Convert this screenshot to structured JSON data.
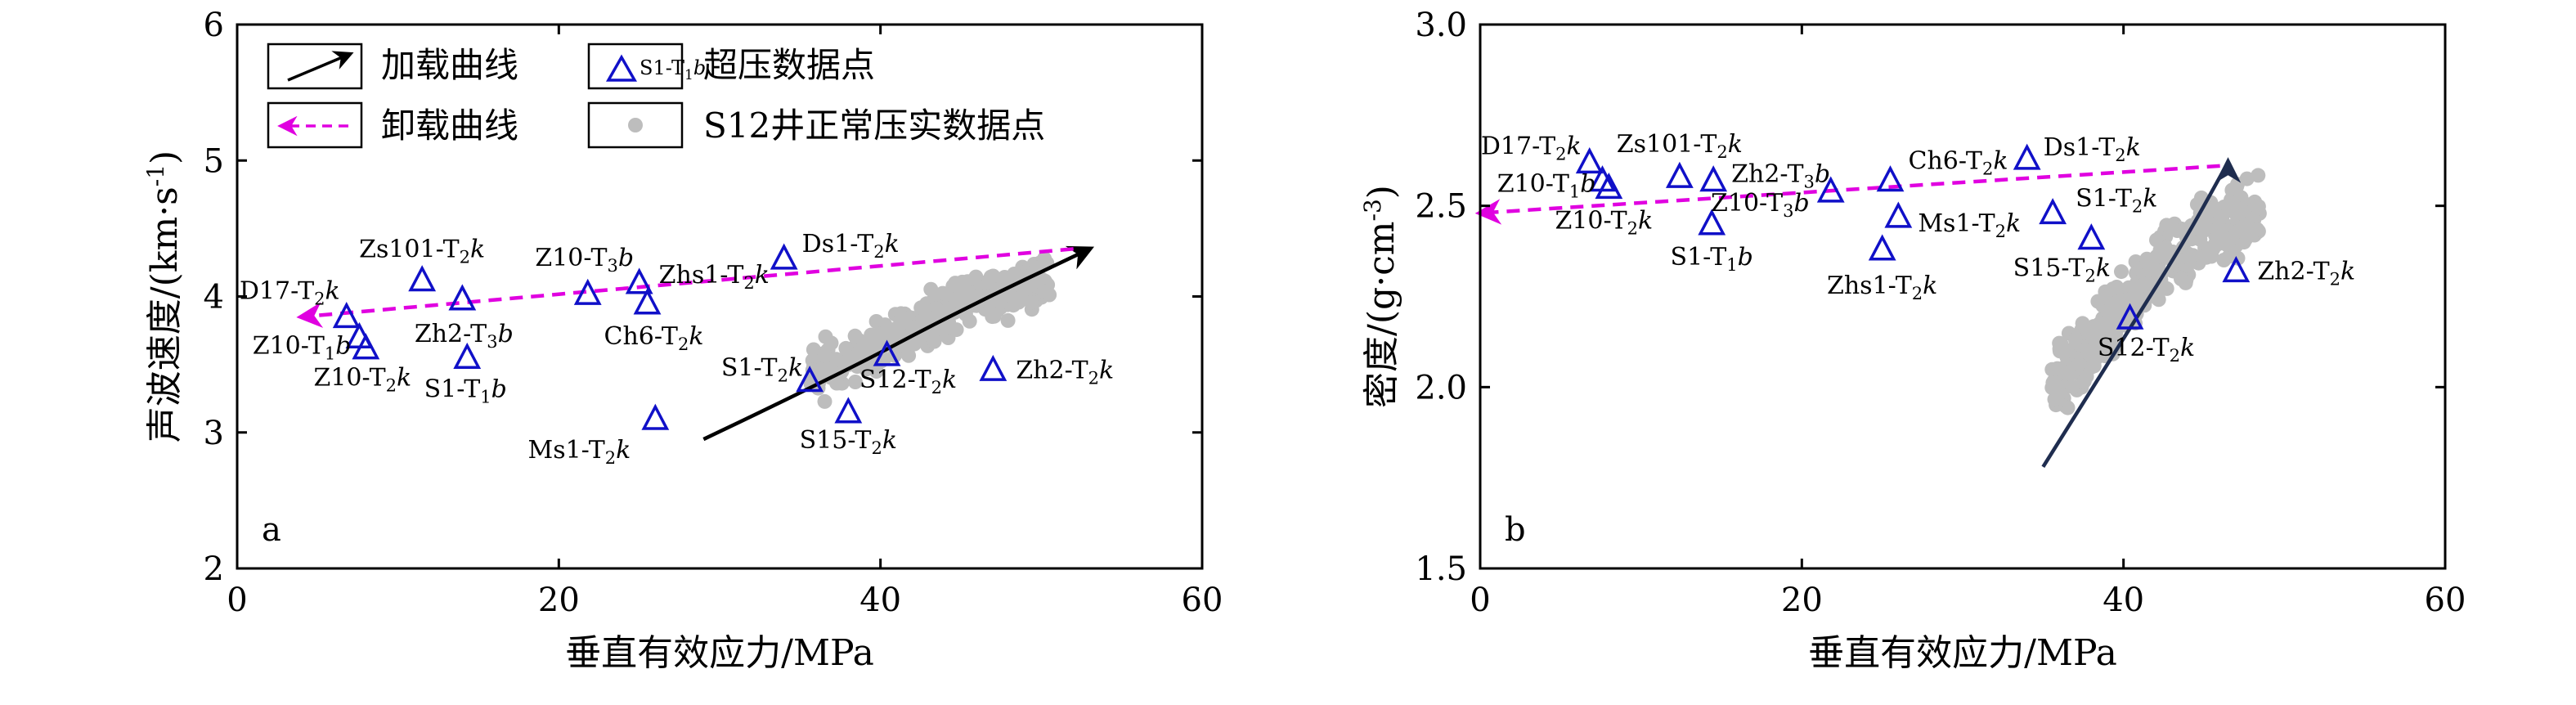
{
  "chart_data": [
    {
      "type": "scatter",
      "panel_letter": "a",
      "xlabel": "垂直有效应力/MPa",
      "ylabel_main": "声波速度/(km·s",
      "ylabel_sup": "-1",
      "ylabel_tail": ")",
      "xlim": [
        0,
        60
      ],
      "ylim": [
        2,
        6
      ],
      "xticks": [
        0,
        20,
        40,
        60
      ],
      "yticks": [
        2,
        3,
        4,
        5,
        6
      ],
      "legend": {
        "placement": "top-left",
        "items": [
          {
            "key": "loading",
            "label": "加载曲线"
          },
          {
            "key": "overpressure",
            "label": "超压数据点",
            "sample": [
              "S1-T",
              "1",
              "b"
            ]
          },
          {
            "key": "unloading",
            "label": "卸载曲线"
          },
          {
            "key": "normal",
            "label": "S12井正常压实数据点"
          }
        ]
      },
      "loading_curve": [
        [
          29,
          2.95
        ],
        [
          37,
          3.4
        ],
        [
          45,
          3.9
        ],
        [
          53,
          4.35
        ]
      ],
      "unloading_curve": [
        [
          52,
          4.35
        ],
        [
          4,
          3.85
        ]
      ],
      "overpressure_points": [
        {
          "x": 6.8,
          "y": 3.85,
          "label": [
            "D17-T",
            "2",
            "k"
          ]
        },
        {
          "x": 7.6,
          "y": 3.7,
          "label": [
            "Z10-T",
            "1",
            "b"
          ]
        },
        {
          "x": 8.0,
          "y": 3.62,
          "label": [
            "Z10-T",
            "2",
            "k"
          ]
        },
        {
          "x": 11.5,
          "y": 4.12,
          "label": [
            "Zs101-T",
            "2",
            "k"
          ]
        },
        {
          "x": 14.0,
          "y": 3.98,
          "label": [
            "Zh2-T",
            "3",
            "b"
          ]
        },
        {
          "x": 14.3,
          "y": 3.55,
          "label": [
            "S1-T",
            "1",
            "b"
          ]
        },
        {
          "x": 21.8,
          "y": 4.02,
          "label": [
            "Z10-T",
            "3",
            "b"
          ]
        },
        {
          "x": 25.0,
          "y": 4.1,
          "label": [
            "Zhs1-T",
            "2",
            "k"
          ]
        },
        {
          "x": 25.5,
          "y": 3.95,
          "label": [
            "Ch6-T",
            "2",
            "k"
          ]
        },
        {
          "x": 26.0,
          "y": 3.1,
          "label": [
            "Ms1-T",
            "2",
            "k"
          ]
        },
        {
          "x": 34.0,
          "y": 4.28,
          "label": [
            "Ds1-T",
            "2",
            "k"
          ]
        },
        {
          "x": 35.6,
          "y": 3.38,
          "label": [
            "S1-T",
            "2",
            "k"
          ]
        },
        {
          "x": 38.0,
          "y": 3.15,
          "label": [
            "S15-T",
            "2",
            "k"
          ]
        },
        {
          "x": 40.4,
          "y": 3.57,
          "label": [
            "S12-T",
            "2",
            "k"
          ]
        },
        {
          "x": 47.0,
          "y": 3.46,
          "label": [
            "Zh2-T",
            "2",
            "k"
          ]
        }
      ],
      "normal_points": {
        "count": 320,
        "seed": 11,
        "x_range": [
          35.5,
          50.5
        ],
        "trend": [
          [
            35.5,
            3.4
          ],
          [
            40,
            3.65
          ],
          [
            45,
            3.95
          ],
          [
            50,
            4.1
          ]
        ],
        "spread": 0.16
      }
    },
    {
      "type": "scatter",
      "panel_letter": "b",
      "xlabel": "垂直有效应力/MPa",
      "ylabel_main": "密度/(g·cm",
      "ylabel_sup": "-3",
      "ylabel_tail": ")",
      "xlim": [
        0,
        60
      ],
      "ylim": [
        1.5,
        3.0
      ],
      "xticks": [
        0,
        20,
        40,
        60
      ],
      "yticks": [
        1.5,
        2.0,
        2.5,
        3.0
      ],
      "loading_curve": [
        [
          35,
          1.78
        ],
        [
          39.5,
          2.1
        ],
        [
          43.5,
          2.38
        ],
        [
          46.5,
          2.62
        ]
      ],
      "unloading_curve": [
        [
          46,
          2.61
        ],
        [
          0,
          2.48
        ]
      ],
      "overpressure_points": [
        {
          "x": 6.8,
          "y": 2.62,
          "label": [
            "D17-T",
            "2",
            "k"
          ]
        },
        {
          "x": 7.6,
          "y": 2.57,
          "label": [
            "Z10-T",
            "1",
            "b"
          ]
        },
        {
          "x": 8.0,
          "y": 2.55,
          "label": [
            "Z10-T",
            "2",
            "k"
          ]
        },
        {
          "x": 12.4,
          "y": 2.58,
          "label": [
            "Zs101-T",
            "2",
            "k"
          ]
        },
        {
          "x": 14.4,
          "y": 2.45,
          "label": [
            "S1-T",
            "1",
            "b"
          ]
        },
        {
          "x": 14.5,
          "y": 2.57,
          "label": [
            "Zh2-T",
            "3",
            "b"
          ]
        },
        {
          "x": 21.8,
          "y": 2.54,
          "label": [
            "Z10-T",
            "3",
            "b"
          ]
        },
        {
          "x": 25.0,
          "y": 2.38,
          "label": [
            "Zhs1-T",
            "2",
            "k"
          ]
        },
        {
          "x": 25.5,
          "y": 2.57,
          "label": [
            "Ch6-T",
            "2",
            "k"
          ]
        },
        {
          "x": 26.0,
          "y": 2.47,
          "label": [
            "Ms1-T",
            "2",
            "k"
          ]
        },
        {
          "x": 34.0,
          "y": 2.63,
          "label": [
            "Ds1-T",
            "2",
            "k"
          ]
        },
        {
          "x": 35.6,
          "y": 2.48,
          "label": [
            "S1-T",
            "2",
            "k"
          ]
        },
        {
          "x": 38.0,
          "y": 2.41,
          "label": [
            "S15-T",
            "2",
            "k"
          ]
        },
        {
          "x": 40.4,
          "y": 2.19,
          "label": [
            "S12-T",
            "2",
            "k"
          ]
        },
        {
          "x": 47.0,
          "y": 2.32,
          "label": [
            "Zh2-T",
            "2",
            "k"
          ]
        }
      ],
      "normal_points": {
        "count": 320,
        "seed": 23,
        "x_range": [
          35.5,
          48.5
        ],
        "trend": [
          [
            35.5,
            2.0
          ],
          [
            38.5,
            2.15
          ],
          [
            42,
            2.32
          ],
          [
            45,
            2.42
          ],
          [
            48,
            2.48
          ]
        ],
        "spread": 0.09
      }
    }
  ],
  "colors": {
    "loading_curve_a": "#000000",
    "loading_curve_b": "#1f2d4f",
    "unloading_curve": "#e000e0",
    "overpressure_marker": "#1010c8",
    "normal_marker": "#bdbdbd"
  }
}
